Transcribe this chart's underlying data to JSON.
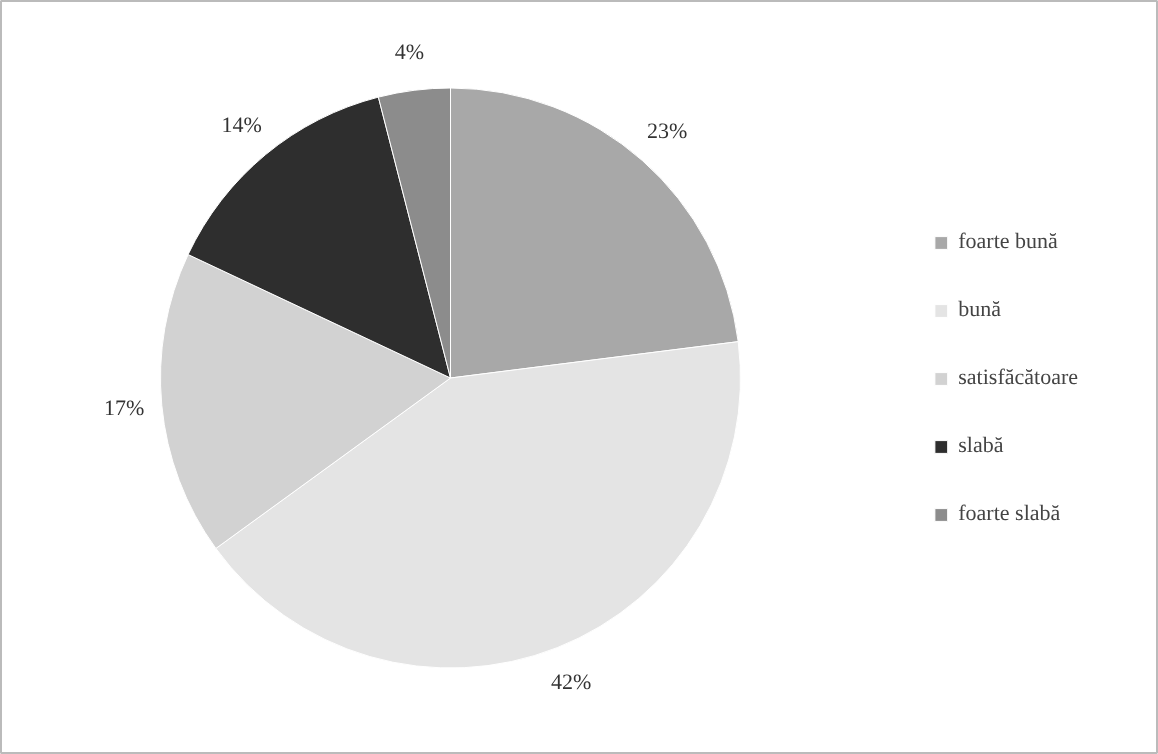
{
  "chart_data": {
    "type": "pie",
    "categories": [
      "foarte bună",
      "bună",
      "satisfăcătoare",
      "slabă",
      "foarte slabă"
    ],
    "values": [
      23,
      42,
      17,
      14,
      4
    ],
    "value_labels": [
      "23%",
      "42%",
      "17%",
      "14%",
      "4%"
    ],
    "colors": [
      "#a8a8a8",
      "#e4e4e4",
      "#d2d2d2",
      "#2e2e2e",
      "#8c8c8c"
    ],
    "legend": "right"
  }
}
